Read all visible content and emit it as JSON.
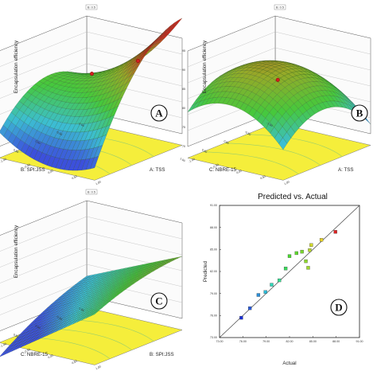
{
  "panels": [
    {
      "id": "A",
      "tag": "A",
      "legend_tag": "B: 0.5",
      "zlabel": "Encapsulation efficiency",
      "xlabel": "A: TSS",
      "ylabel": "B: SPI:JSS",
      "zticks": [
        "70",
        "75",
        "80",
        "85",
        "90",
        "95"
      ],
      "xticks": [
        "-1.00",
        "-0.50",
        "0.00",
        "0.50",
        "1.00"
      ],
      "yticks": [
        "1.00",
        "0.50",
        "0.00",
        "-0.50",
        "-1.00"
      ],
      "shape": "saddle"
    },
    {
      "id": "B",
      "tag": "B",
      "legend_tag": "B: 0.5",
      "zlabel": "Encapsulation efficiency",
      "xlabel": "A: TSS",
      "ylabel": "C: NBRE-15",
      "zticks": [
        "70",
        "75",
        "80",
        "85",
        "90",
        "95"
      ],
      "xticks": [
        "-1.00",
        "-0.50",
        "0.00",
        "0.50",
        "1.00"
      ],
      "yticks": [
        "1.00",
        "0.50",
        "0.00",
        "-0.50",
        "-1.00"
      ],
      "shape": "dome"
    },
    {
      "id": "C",
      "tag": "C",
      "legend_tag": "B: 0.5",
      "zlabel": "Encapsulation efficiency",
      "xlabel": "B: SPI:JSS",
      "ylabel": "C: NBRE-15",
      "zticks": [
        "70",
        "75",
        "80",
        "85",
        "90",
        "95"
      ],
      "xticks": [
        "-1.00",
        "-0.50",
        "0.00",
        "0.50",
        "1.00"
      ],
      "yticks": [
        "1.00",
        "0.50",
        "0.00",
        "-0.50",
        "-1.00"
      ],
      "shape": "ramp"
    }
  ],
  "chart_data": {
    "type": "scatter",
    "title": "Predicted vs. Actual",
    "xlabel": "Actual",
    "ylabel": "Predicted",
    "tag": "D",
    "xticks": [
      "73.00",
      "76.00",
      "79.00",
      "82.00",
      "85.00",
      "88.00",
      "91.00"
    ],
    "yticks": [
      "73.00",
      "76.00",
      "79.00",
      "82.00",
      "85.00",
      "88.00",
      "91.00"
    ],
    "xlim": [
      73,
      91
    ],
    "ylim": [
      73,
      91
    ],
    "grid": false,
    "reference_line": true,
    "points": [
      {
        "x": 75.8,
        "y": 75.7,
        "color": "#1a2fd6"
      },
      {
        "x": 76.9,
        "y": 77.0,
        "color": "#2a5ad8"
      },
      {
        "x": 78.0,
        "y": 78.8,
        "color": "#2b8fd9"
      },
      {
        "x": 78.9,
        "y": 79.2,
        "color": "#2bbcd8"
      },
      {
        "x": 79.7,
        "y": 80.2,
        "color": "#2ed6b8"
      },
      {
        "x": 80.7,
        "y": 80.8,
        "color": "#35d990"
      },
      {
        "x": 81.5,
        "y": 82.4,
        "color": "#38d95a"
      },
      {
        "x": 82.0,
        "y": 84.1,
        "color": "#4ad82f"
      },
      {
        "x": 82.9,
        "y": 84.5,
        "color": "#5fd82e"
      },
      {
        "x": 83.6,
        "y": 84.7,
        "color": "#7ad82e"
      },
      {
        "x": 84.1,
        "y": 83.4,
        "color": "#8fd92d"
      },
      {
        "x": 84.4,
        "y": 82.5,
        "color": "#9fd82d"
      },
      {
        "x": 84.6,
        "y": 84.9,
        "color": "#b8d82c"
      },
      {
        "x": 84.8,
        "y": 85.6,
        "color": "#d0d82b"
      },
      {
        "x": 86.1,
        "y": 86.3,
        "color": "#e6d22a"
      },
      {
        "x": 87.9,
        "y": 87.4,
        "color": "#dc2323"
      }
    ]
  }
}
